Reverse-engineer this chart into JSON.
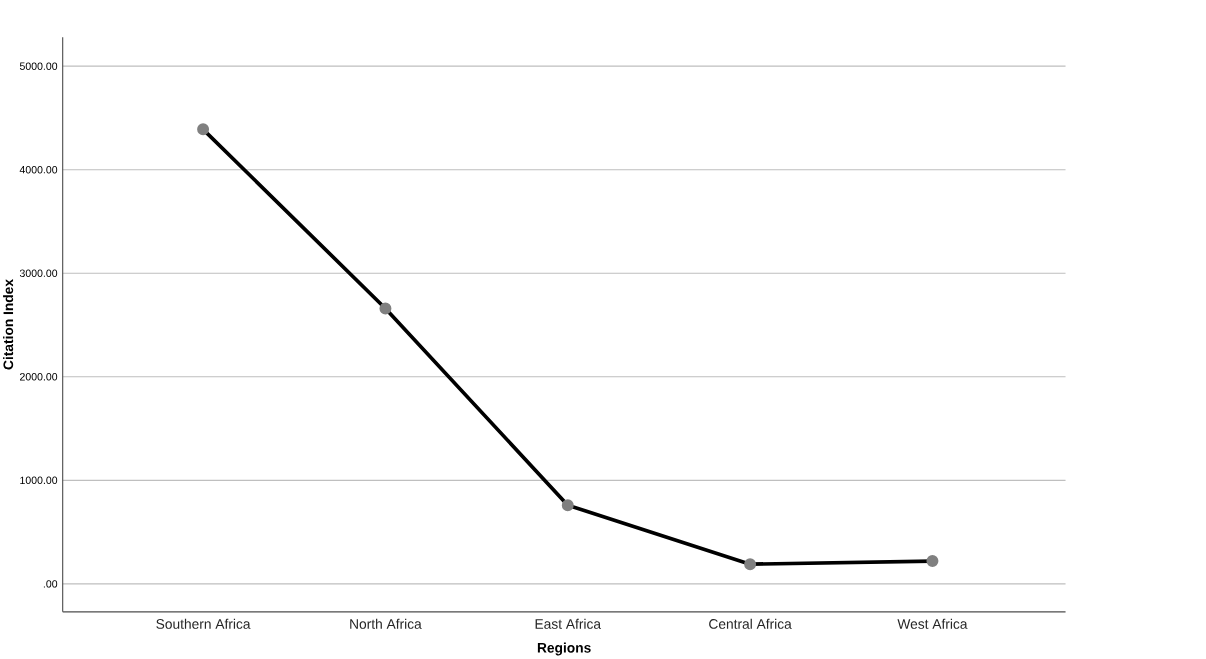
{
  "chart_data": {
    "type": "line",
    "xlabel": "Regions",
    "ylabel": "Citation Index",
    "categories": [
      "Southern Africa",
      "North Africa",
      "East Africa",
      "Central Africa",
      "West Africa"
    ],
    "series": [
      {
        "color": "#000000",
        "values": [
          4390,
          2660,
          760,
          190,
          220
        ]
      }
    ],
    "ylim": [
      -270,
      5280
    ],
    "yticks": [
      {
        "value": 0,
        "label": ".00"
      },
      {
        "value": 1000,
        "label": "1000.00"
      },
      {
        "value": 2000,
        "label": "2000.00"
      },
      {
        "value": 3000,
        "label": "3000.00"
      },
      {
        "value": 4000,
        "label": "4000.00"
      },
      {
        "value": 5000,
        "label": "5000.00"
      }
    ],
    "grid": "y",
    "marker": "circle",
    "line_style": "solid"
  }
}
